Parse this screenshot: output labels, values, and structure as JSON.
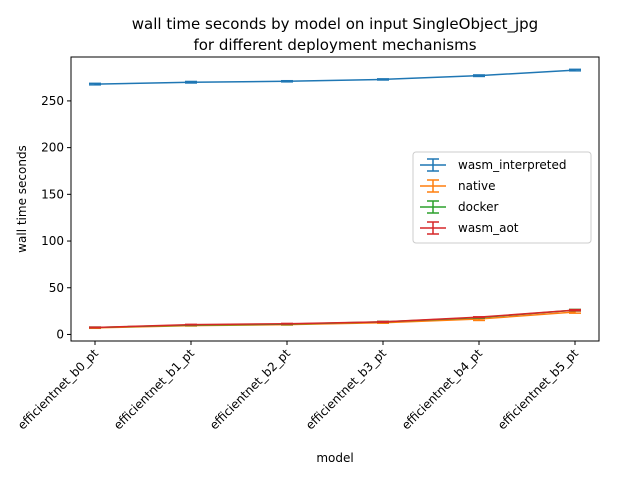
{
  "chart_data": {
    "type": "line",
    "title": "wall time seconds by model on input SingleObject_jpg",
    "subtitle": "for different deployment mechanisms",
    "xlabel": "model",
    "ylabel": "wall time seconds",
    "categories": [
      "efficientnet_b0_pt",
      "efficientnet_b1_pt",
      "efficientnet_b2_pt",
      "efficientnet_b3_pt",
      "efficientnet_b4_pt",
      "efficientnet_b5_pt"
    ],
    "ylim": [
      -7,
      297
    ],
    "yticks": [
      0,
      50,
      100,
      150,
      200,
      250
    ],
    "grid": false,
    "legend_position": "center-right",
    "error_bars": true,
    "series": [
      {
        "name": "wasm_interpreted",
        "color": "#1f77b4",
        "values": [
          268,
          270,
          271,
          273,
          277,
          283
        ],
        "errors": [
          0.8,
          0.8,
          0.6,
          0.6,
          0.8,
          0.8
        ]
      },
      {
        "name": "native",
        "color": "#ff7f0e",
        "values": [
          7,
          9.5,
          10.5,
          12.5,
          16.5,
          24
        ],
        "errors": [
          0.4,
          0.4,
          0.4,
          0.5,
          1.5,
          1.2
        ]
      },
      {
        "name": "docker",
        "color": "#2ca02c",
        "values": [
          7.5,
          10,
          11,
          13.5,
          18,
          26
        ],
        "errors": [
          0.4,
          0.4,
          0.4,
          0.5,
          0.5,
          0.8
        ]
      },
      {
        "name": "wasm_aot",
        "color": "#d62728",
        "values": [
          7.5,
          10.5,
          11.5,
          13.5,
          18.5,
          26
        ],
        "errors": [
          0.3,
          0.3,
          0.3,
          0.4,
          0.4,
          0.6
        ]
      }
    ]
  }
}
